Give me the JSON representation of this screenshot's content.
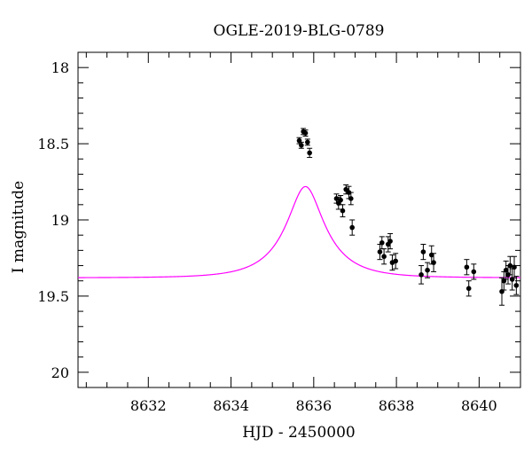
{
  "chart_data": {
    "type": "scatter",
    "title": "OGLE-2019-BLG-0789",
    "xlabel": "HJD - 2450000",
    "ylabel": "I magnitude",
    "xlim": [
      8630.3,
      8641.0
    ],
    "ylim": [
      20.1,
      17.9
    ],
    "y_inverted": true,
    "grid": false,
    "x_ticks": [
      "8632",
      "8634",
      "8636",
      "8638",
      "8640"
    ],
    "y_ticks": [
      "18",
      "18.5",
      "19",
      "19.5",
      "20"
    ],
    "model_color": "#ff00ff",
    "point_color": "#000000",
    "model": {
      "t0": 8635.8,
      "u0": 0.37,
      "tE": 1.07,
      "baseline": 19.38,
      "fs": 0.4
    },
    "points": [
      {
        "x": 8635.65,
        "y": 18.48,
        "err": 0.02
      },
      {
        "x": 8635.7,
        "y": 18.51,
        "err": 0.02
      },
      {
        "x": 8635.75,
        "y": 18.42,
        "err": 0.02
      },
      {
        "x": 8635.8,
        "y": 18.43,
        "err": 0.02
      },
      {
        "x": 8635.85,
        "y": 18.49,
        "err": 0.02
      },
      {
        "x": 8635.9,
        "y": 18.56,
        "err": 0.03
      },
      {
        "x": 8636.55,
        "y": 18.86,
        "err": 0.03
      },
      {
        "x": 8636.6,
        "y": 18.89,
        "err": 0.04
      },
      {
        "x": 8636.65,
        "y": 18.87,
        "err": 0.03
      },
      {
        "x": 8636.7,
        "y": 18.94,
        "err": 0.04
      },
      {
        "x": 8636.78,
        "y": 18.8,
        "err": 0.03
      },
      {
        "x": 8636.85,
        "y": 18.82,
        "err": 0.04
      },
      {
        "x": 8636.9,
        "y": 18.86,
        "err": 0.04
      },
      {
        "x": 8636.93,
        "y": 19.05,
        "err": 0.05
      },
      {
        "x": 8637.6,
        "y": 19.21,
        "err": 0.05
      },
      {
        "x": 8637.65,
        "y": 19.15,
        "err": 0.04
      },
      {
        "x": 8637.7,
        "y": 19.24,
        "err": 0.05
      },
      {
        "x": 8637.8,
        "y": 19.16,
        "err": 0.05
      },
      {
        "x": 8637.85,
        "y": 19.14,
        "err": 0.05
      },
      {
        "x": 8637.9,
        "y": 19.28,
        "err": 0.05
      },
      {
        "x": 8637.98,
        "y": 19.27,
        "err": 0.05
      },
      {
        "x": 8638.6,
        "y": 19.36,
        "err": 0.06
      },
      {
        "x": 8638.65,
        "y": 19.21,
        "err": 0.05
      },
      {
        "x": 8638.75,
        "y": 19.33,
        "err": 0.05
      },
      {
        "x": 8638.85,
        "y": 19.23,
        "err": 0.06
      },
      {
        "x": 8638.9,
        "y": 19.28,
        "err": 0.06
      },
      {
        "x": 8639.7,
        "y": 19.31,
        "err": 0.05
      },
      {
        "x": 8639.75,
        "y": 19.45,
        "err": 0.05
      },
      {
        "x": 8639.87,
        "y": 19.34,
        "err": 0.05
      },
      {
        "x": 8640.55,
        "y": 19.47,
        "err": 0.09
      },
      {
        "x": 8640.6,
        "y": 19.4,
        "err": 0.06
      },
      {
        "x": 8640.65,
        "y": 19.33,
        "err": 0.06
      },
      {
        "x": 8640.7,
        "y": 19.36,
        "err": 0.06
      },
      {
        "x": 8640.75,
        "y": 19.3,
        "err": 0.06
      },
      {
        "x": 8640.8,
        "y": 19.39,
        "err": 0.07
      },
      {
        "x": 8640.85,
        "y": 19.31,
        "err": 0.07
      },
      {
        "x": 8640.9,
        "y": 19.43,
        "err": 0.06
      }
    ]
  }
}
